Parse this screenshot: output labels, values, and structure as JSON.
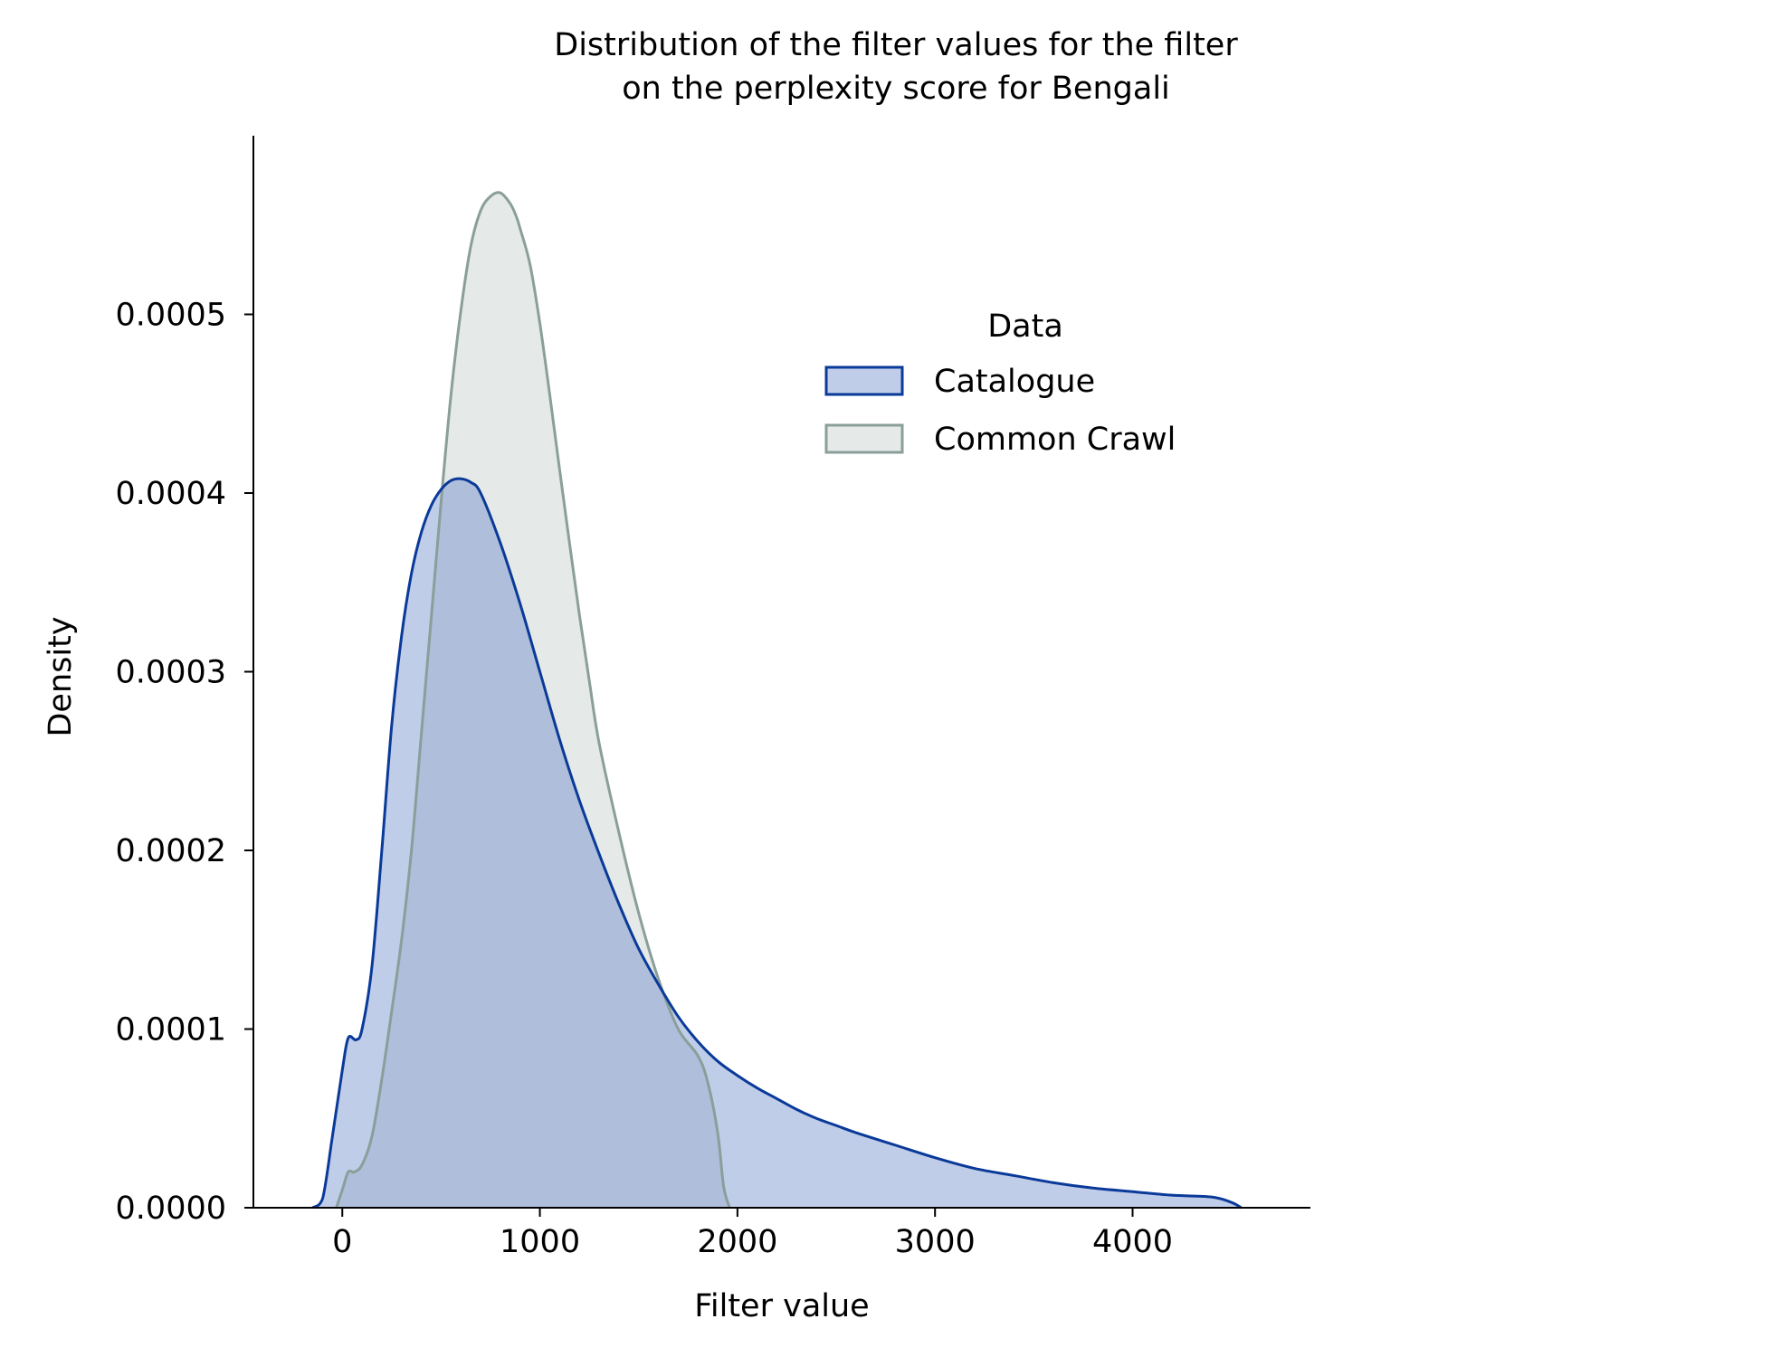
{
  "chart_data": {
    "type": "area",
    "title_lines": [
      "Distribution of the filter values for the filter",
      "on the perplexity score for Bengali"
    ],
    "xlabel": "Filter value",
    "ylabel": "Density",
    "xlim": [
      -450,
      4900
    ],
    "ylim": [
      0,
      0.0006
    ],
    "xticks": [
      0,
      1000,
      2000,
      3000,
      4000
    ],
    "xtick_labels": [
      "0",
      "1000",
      "2000",
      "3000",
      "4000"
    ],
    "yticks": [
      0,
      0.0001,
      0.0002,
      0.0003,
      0.0004,
      0.0005
    ],
    "ytick_labels": [
      "0.0000",
      "0.0001",
      "0.0002",
      "0.0003",
      "0.0004",
      "0.0005"
    ],
    "grid": false,
    "legend": {
      "title": "Data",
      "placement": "upper-right"
    },
    "series": [
      {
        "name": "Catalogue",
        "line_color": "#0a3a99",
        "fill_color": "#4a6fbf",
        "fill_opacity": 0.35,
        "x": [
          -150,
          -100,
          -50,
          0,
          30,
          70,
          100,
          150,
          200,
          250,
          300,
          350,
          400,
          450,
          500,
          550,
          600,
          650,
          700,
          800,
          900,
          1000,
          1100,
          1200,
          1300,
          1400,
          1500,
          1600,
          1700,
          1800,
          1900,
          2000,
          2100,
          2200,
          2300,
          2400,
          2500,
          2600,
          2800,
          3000,
          3200,
          3400,
          3600,
          3800,
          4000,
          4200,
          4400,
          4500,
          4550
        ],
        "y": [
          0,
          5e-06,
          4e-05,
          7.7e-05,
          9.5e-05,
          9.4e-05,
          0.0001,
          0.000135,
          0.0002,
          0.00027,
          0.00032,
          0.000355,
          0.000378,
          0.000393,
          0.000402,
          0.000407,
          0.000408,
          0.000406,
          0.0004,
          0.000372,
          0.000338,
          0.0003,
          0.000262,
          0.000228,
          0.000198,
          0.00017,
          0.000145,
          0.000125,
          0.000107,
          9.3e-05,
          8.2e-05,
          7.4e-05,
          6.7e-05,
          6.1e-05,
          5.5e-05,
          5e-05,
          4.6e-05,
          4.2e-05,
          3.5e-05,
          2.8e-05,
          2.2e-05,
          1.8e-05,
          1.4e-05,
          1.1e-05,
          9e-06,
          7e-06,
          6e-06,
          3e-06,
          0
        ]
      },
      {
        "name": "Common Crawl",
        "line_color": "#8a9e9a",
        "fill_color": "#c5cfcd",
        "fill_opacity": 0.45,
        "x": [
          -30,
          0,
          30,
          60,
          100,
          150,
          200,
          250,
          300,
          350,
          400,
          450,
          500,
          550,
          600,
          650,
          700,
          750,
          800,
          850,
          880,
          900,
          950,
          1000,
          1050,
          1100,
          1150,
          1200,
          1250,
          1300,
          1400,
          1500,
          1600,
          1700,
          1800,
          1850,
          1900,
          1930,
          1960
        ],
        "y": [
          0,
          1e-05,
          2e-05,
          2e-05,
          2.4e-05,
          4e-05,
          7.2e-05,
          0.00011,
          0.00015,
          0.0002,
          0.000265,
          0.00033,
          0.000395,
          0.000455,
          0.000502,
          0.000538,
          0.000558,
          0.000566,
          0.000568,
          0.000562,
          0.000555,
          0.000548,
          0.000528,
          0.000495,
          0.000455,
          0.000413,
          0.000372,
          0.000332,
          0.000295,
          0.00026,
          0.00021,
          0.000165,
          0.000128,
          0.0001,
          8.5e-05,
          7e-05,
          4.2e-05,
          1.2e-05,
          0
        ]
      }
    ]
  }
}
